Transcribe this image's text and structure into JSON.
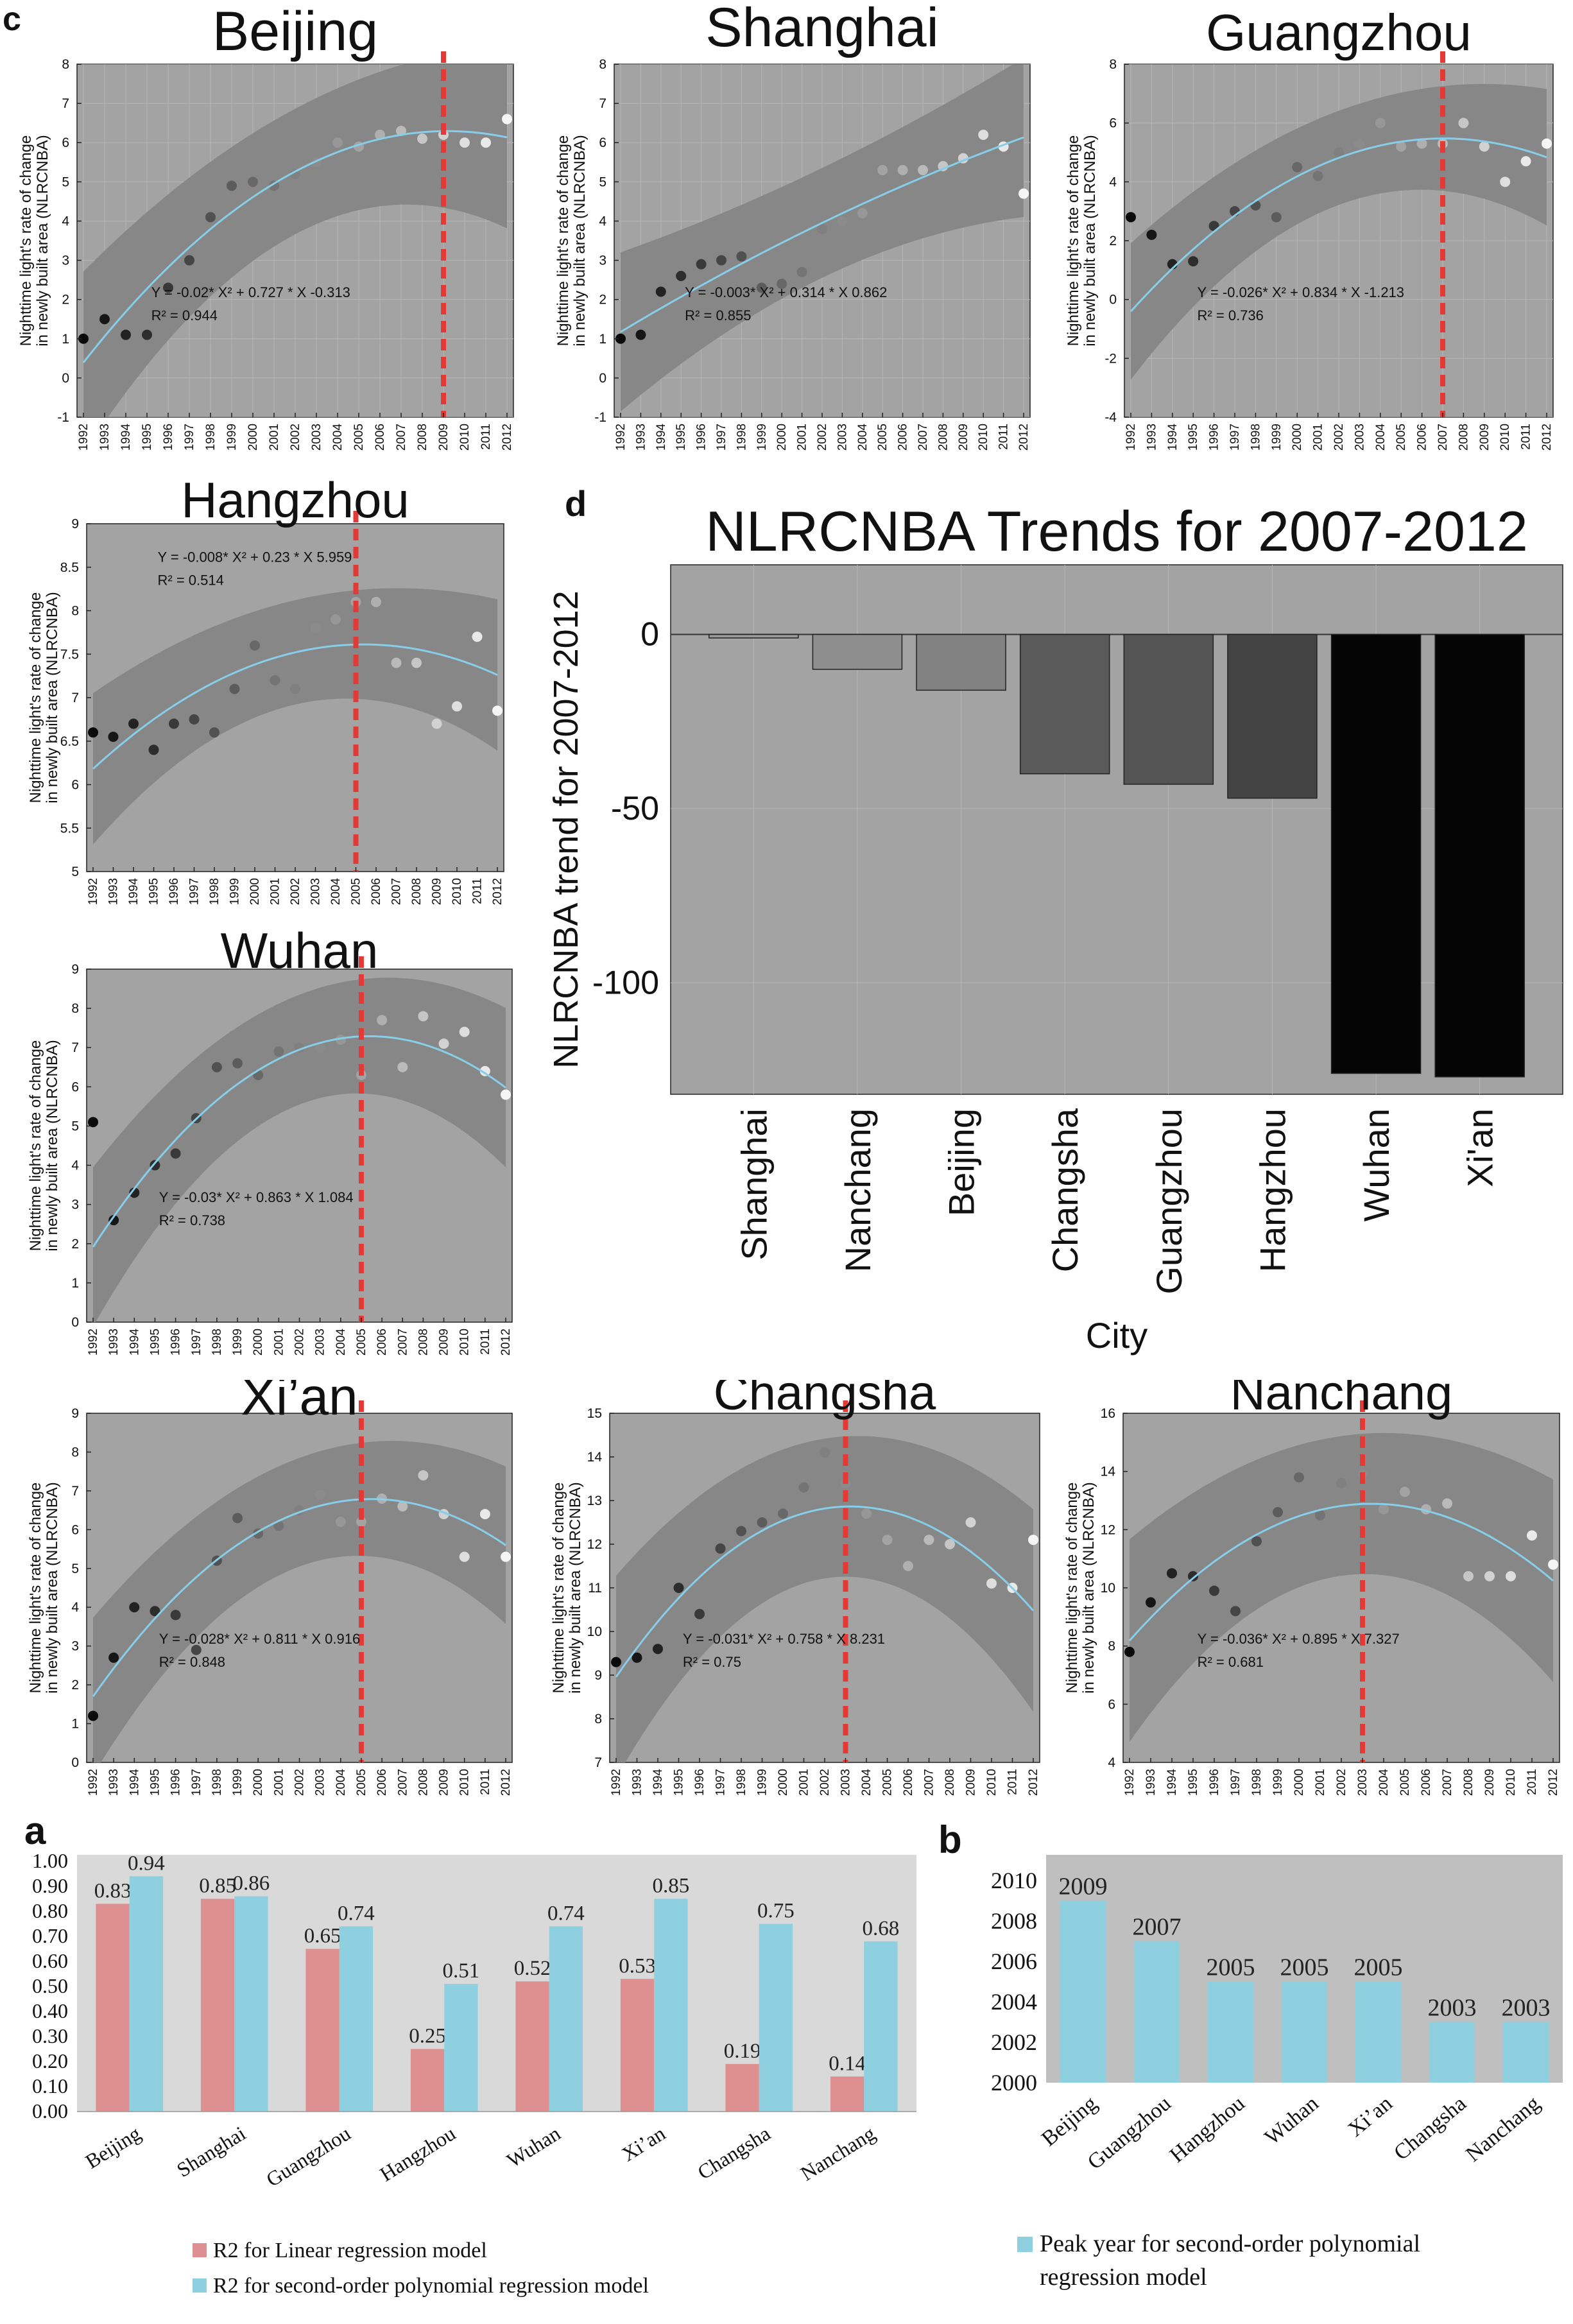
{
  "colors": {
    "axes_bg_dark": "#a3a3a3",
    "band": "#878787",
    "fit_line": "#87ceeb",
    "peak_line": "#e53935",
    "grid": "#b6b6b6",
    "panel_d_bg": "#a3a3a3",
    "linear_bar": "#de8f8f",
    "poly_bar": "#8ecfe0",
    "panel_a_bg": "#d9d9d9",
    "panel_b_bg": "#bfbfbf"
  },
  "panel_letters": {
    "a": "a",
    "b": "b",
    "c": "c",
    "d": "d"
  },
  "chart_data": [
    {
      "id": "beijing",
      "type": "scatter",
      "title": "Beijing",
      "ylabel": [
        "Nighttime light's rate of change",
        "in newly built area (NLRCNBA)"
      ],
      "ylim": [
        -1,
        8
      ],
      "yticks": [
        -1,
        0,
        1,
        2,
        3,
        4,
        5,
        6,
        7,
        8
      ],
      "x": [
        "1992",
        "1993",
        "1994",
        "1995",
        "1996",
        "1997",
        "1998",
        "1999",
        "2000",
        "2001",
        "2002",
        "2003",
        "2004",
        "2005",
        "2006",
        "2007",
        "2008",
        "2009",
        "2010",
        "2011",
        "2012"
      ],
      "y": [
        1.0,
        1.5,
        1.1,
        1.1,
        2.3,
        3.0,
        4.1,
        4.9,
        5.0,
        4.9,
        5.2,
        5.5,
        6.0,
        5.9,
        6.2,
        6.3,
        6.1,
        6.2,
        6.0,
        6.0,
        6.6
      ],
      "fit": {
        "a": -0.02,
        "b": 0.727,
        "c": -0.313
      },
      "band_halfwidth": 1.6,
      "peak_year": "2009",
      "equation": "Y = -0.02* X² + 0.727 * X -0.313",
      "r2": "R² = 0.944",
      "grid": true
    },
    {
      "id": "shanghai",
      "type": "scatter",
      "title": "Shanghai",
      "ylabel": [
        "Nighttime light's rate of change",
        "in newly built area (NLRCNBA)"
      ],
      "ylim": [
        -1,
        8
      ],
      "yticks": [
        -1,
        0,
        1,
        2,
        3,
        4,
        5,
        6,
        7,
        8
      ],
      "x": [
        "1992",
        "1993",
        "1994",
        "1995",
        "1996",
        "1997",
        "1998",
        "1999",
        "2000",
        "2001",
        "2002",
        "2003",
        "2004",
        "2005",
        "2006",
        "2007",
        "2008",
        "2009",
        "2010",
        "2011",
        "2012"
      ],
      "y": [
        1.0,
        1.1,
        2.2,
        2.6,
        2.9,
        3.0,
        3.1,
        2.3,
        2.4,
        2.7,
        3.8,
        4.0,
        4.2,
        5.3,
        5.3,
        5.3,
        5.4,
        5.6,
        6.2,
        5.9,
        4.7
      ],
      "fit": {
        "a": -0.003,
        "b": 0.314,
        "c": 0.862
      },
      "band_halfwidth": 1.4,
      "peak_year": null,
      "equation": "Y = -0.003* X² + 0.314 * X 0.862",
      "r2": "R² = 0.855",
      "grid": true
    },
    {
      "id": "guangzhou",
      "type": "scatter",
      "title": "Guangzhou",
      "ylabel": [
        "Nighttime light's rate of change",
        "in newly built area (NLRCNBA)"
      ],
      "ylim": [
        -4,
        8
      ],
      "yticks": [
        -4,
        -2,
        0,
        2,
        4,
        6,
        8
      ],
      "x": [
        "1992",
        "1993",
        "1994",
        "1995",
        "1996",
        "1997",
        "1998",
        "1999",
        "2000",
        "2001",
        "2002",
        "2003",
        "2004",
        "2005",
        "2006",
        "2007",
        "2008",
        "2009",
        "2010",
        "2011",
        "2012"
      ],
      "y": [
        2.8,
        2.2,
        1.2,
        1.3,
        2.5,
        3.0,
        3.2,
        2.8,
        4.5,
        4.2,
        5.0,
        5.3,
        6.0,
        5.2,
        5.3,
        5.3,
        6.0,
        5.2,
        4.0,
        4.7,
        5.3
      ],
      "fit": {
        "a": -0.026,
        "b": 0.834,
        "c": -1.213
      },
      "band_halfwidth": 1.6,
      "peak_year": "2007",
      "equation": "Y = -0.026* X² + 0.834 * X -1.213",
      "r2": "R² = 0.736",
      "grid": true
    },
    {
      "id": "hangzhou",
      "type": "scatter",
      "title": "Hangzhou",
      "ylabel": [
        "Nighttime light's rate of change",
        "in newly built area (NLRCNBA)"
      ],
      "ylim": [
        5,
        9
      ],
      "yticks": [
        5,
        5.5,
        6,
        6.5,
        7,
        7.5,
        8,
        8.5,
        9
      ],
      "x": [
        "1992",
        "1993",
        "1994",
        "1995",
        "1996",
        "1997",
        "1998",
        "1999",
        "2000",
        "2001",
        "2002",
        "2003",
        "2004",
        "2005",
        "2006",
        "2007",
        "2008",
        "2009",
        "2010",
        "2011",
        "2012"
      ],
      "y": [
        6.6,
        6.55,
        6.7,
        6.4,
        6.7,
        6.75,
        6.6,
        7.1,
        7.6,
        7.2,
        7.1,
        7.8,
        7.9,
        8.1,
        8.1,
        7.4,
        7.4,
        6.7,
        6.9,
        7.7,
        6.85
      ],
      "fit": {
        "a": -0.008,
        "b": 0.23,
        "c": 5.959
      },
      "band_halfwidth": 0.6,
      "peak_year": "2005",
      "equation": "Y = -0.008* X² + 0.23 * X 5.959",
      "r2": "R² = 0.514",
      "grid": false
    },
    {
      "id": "wuhan",
      "type": "scatter",
      "title": "Wuhan",
      "ylabel": [
        "Nighttime light's rate of change",
        "in newly built area (NLRCNBA)"
      ],
      "ylim": [
        0,
        9
      ],
      "yticks": [
        0,
        1,
        2,
        3,
        4,
        5,
        6,
        7,
        8,
        9
      ],
      "x": [
        "1992",
        "1993",
        "1994",
        "1995",
        "1996",
        "1997",
        "1998",
        "1999",
        "2000",
        "2001",
        "2002",
        "2003",
        "2004",
        "2005",
        "2006",
        "2007",
        "2008",
        "2009",
        "2010",
        "2011",
        "2012"
      ],
      "y": [
        5.1,
        2.6,
        3.3,
        4.0,
        4.3,
        5.2,
        6.5,
        6.6,
        6.3,
        6.9,
        7.0,
        7.0,
        7.2,
        6.3,
        7.7,
        6.5,
        7.8,
        7.1,
        7.4,
        6.4,
        5.8
      ],
      "fit": {
        "a": -0.03,
        "b": 0.863,
        "c": 1.084
      },
      "band_halfwidth": 1.4,
      "peak_year": "2005",
      "equation": "Y = -0.03* X² + 0.863 * X 1.084",
      "r2": "R² = 0.738",
      "grid": false
    },
    {
      "id": "xian",
      "type": "scatter",
      "title": "Xi’an",
      "ylabel": [
        "Nighttime light's rate of change",
        "in newly built area (NLRCNBA)"
      ],
      "ylim": [
        0,
        9
      ],
      "yticks": [
        0,
        1,
        2,
        3,
        4,
        5,
        6,
        7,
        8,
        9
      ],
      "x": [
        "1992",
        "1993",
        "1994",
        "1995",
        "1996",
        "1997",
        "1998",
        "1999",
        "2000",
        "2001",
        "2002",
        "2003",
        "2004",
        "2005",
        "2006",
        "2007",
        "2008",
        "2009",
        "2010",
        "2011",
        "2012"
      ],
      "y": [
        1.2,
        2.7,
        4.0,
        3.9,
        3.8,
        2.9,
        5.2,
        6.3,
        5.9,
        6.1,
        6.5,
        6.9,
        6.2,
        6.2,
        6.8,
        6.6,
        7.4,
        6.4,
        5.3,
        6.4,
        5.3
      ],
      "fit": {
        "a": -0.028,
        "b": 0.811,
        "c": 0.916
      },
      "band_halfwidth": 1.4,
      "peak_year": "2005",
      "equation": "Y = -0.028* X² + 0.811 * X 0.916",
      "r2": "R² = 0.848",
      "grid": false
    },
    {
      "id": "changsha",
      "type": "scatter",
      "title": "Changsha",
      "ylabel": [
        "Nighttime light's rate of change",
        "in newly built area (NLRCNBA)"
      ],
      "ylim": [
        7,
        15
      ],
      "yticks": [
        7,
        8,
        9,
        10,
        11,
        12,
        13,
        14,
        15
      ],
      "x": [
        "1992",
        "1993",
        "1994",
        "1995",
        "1996",
        "1997",
        "1998",
        "1999",
        "2000",
        "2001",
        "2002",
        "2003",
        "2004",
        "2005",
        "2006",
        "2007",
        "2008",
        "2009",
        "2010",
        "2011",
        "2012"
      ],
      "y": [
        9.3,
        9.4,
        9.6,
        11.0,
        10.4,
        11.9,
        12.3,
        12.5,
        12.7,
        13.3,
        14.1,
        13.4,
        12.7,
        12.1,
        11.5,
        12.1,
        12.0,
        12.5,
        11.1,
        11.0,
        12.1
      ],
      "fit": {
        "a": -0.031,
        "b": 0.758,
        "c": 8.231
      },
      "band_halfwidth": 1.6,
      "peak_year": "2003",
      "equation": "Y = -0.031* X² + 0.758 * X 8.231",
      "r2": "R² = 0.75",
      "grid": false
    },
    {
      "id": "nanchang",
      "type": "scatter",
      "title": "Nanchang",
      "ylabel": [
        "Nighttime light's rate of change",
        "in newly built area (NLRCNBA)"
      ],
      "ylim": [
        4,
        16
      ],
      "yticks": [
        4,
        6,
        8,
        10,
        12,
        14,
        16
      ],
      "x": [
        "1992",
        "1993",
        "1994",
        "1995",
        "1996",
        "1997",
        "1998",
        "1999",
        "2000",
        "2001",
        "2002",
        "2003",
        "2004",
        "2005",
        "2006",
        "2007",
        "2008",
        "2009",
        "2010",
        "2011",
        "2012"
      ],
      "y": [
        7.8,
        9.5,
        10.5,
        10.4,
        9.9,
        9.2,
        11.6,
        12.6,
        13.8,
        12.5,
        13.6,
        13.9,
        12.7,
        13.3,
        12.7,
        12.9,
        10.4,
        10.4,
        10.4,
        11.8,
        10.8
      ],
      "fit": {
        "a": -0.036,
        "b": 0.895,
        "c": 7.327
      },
      "band_halfwidth": 2.4,
      "peak_year": "2003",
      "equation": "Y = -0.036* X² + 0.895 * X 7.327",
      "r2": "R² = 0.681",
      "grid": false
    },
    {
      "id": "trends",
      "type": "bar",
      "title": "NLRCNBA Trends for 2007-2012",
      "xlabel": "City",
      "ylabel": "NLRCNBA trend for 2007-2012",
      "categories": [
        "Shanghai",
        "Nanchang",
        "Beijing",
        "Changsha",
        "Guangzhou",
        "Hangzhou",
        "Wuhan",
        "Xi'an"
      ],
      "values": [
        -1,
        -10,
        -16,
        -40,
        -43,
        -47,
        -126,
        -127
      ],
      "bar_colors": [
        "#9a9a9a",
        "#8e8e8e",
        "#828282",
        "#5a5a5a",
        "#545454",
        "#444444",
        "#050505",
        "#050505"
      ],
      "ylim": [
        -132,
        20
      ],
      "yticks": [
        0,
        -50,
        -100
      ],
      "grid": true
    },
    {
      "id": "r2",
      "type": "bar",
      "categories": [
        "Beijing",
        "Shanghai",
        "Guangzhou",
        "Hangzhou",
        "Wuhan",
        "Xi’an",
        "Changsha",
        "Nanchang"
      ],
      "series": [
        {
          "name": "R2 for Linear regression model",
          "values": [
            0.83,
            0.85,
            0.65,
            0.25,
            0.52,
            0.53,
            0.19,
            0.14
          ]
        },
        {
          "name": "R2 for second-order polynomial regression model",
          "values": [
            0.94,
            0.86,
            0.74,
            0.51,
            0.74,
            0.85,
            0.75,
            0.68
          ]
        }
      ],
      "ylim": [
        0,
        1.0
      ],
      "yticks": [
        "0.00",
        "0.10",
        "0.20",
        "0.30",
        "0.40",
        "0.50",
        "0.60",
        "0.70",
        "0.80",
        "0.90",
        "1.00"
      ],
      "legend_position": "bottom"
    },
    {
      "id": "peak",
      "type": "bar",
      "categories": [
        "Beijing",
        "Guangzhou",
        "Hangzhou",
        "Wuhan",
        "Xi’an",
        "Changsha",
        "Nanchang"
      ],
      "values": [
        2009,
        2007,
        2005,
        2005,
        2005,
        2003,
        2003
      ],
      "series_name": "Peak year for second-order polynomial regression model",
      "ylim": [
        2000,
        2010
      ],
      "yticks": [
        "2000",
        "2002",
        "2004",
        "2006",
        "2008",
        "2010"
      ],
      "legend_position": "bottom"
    }
  ]
}
